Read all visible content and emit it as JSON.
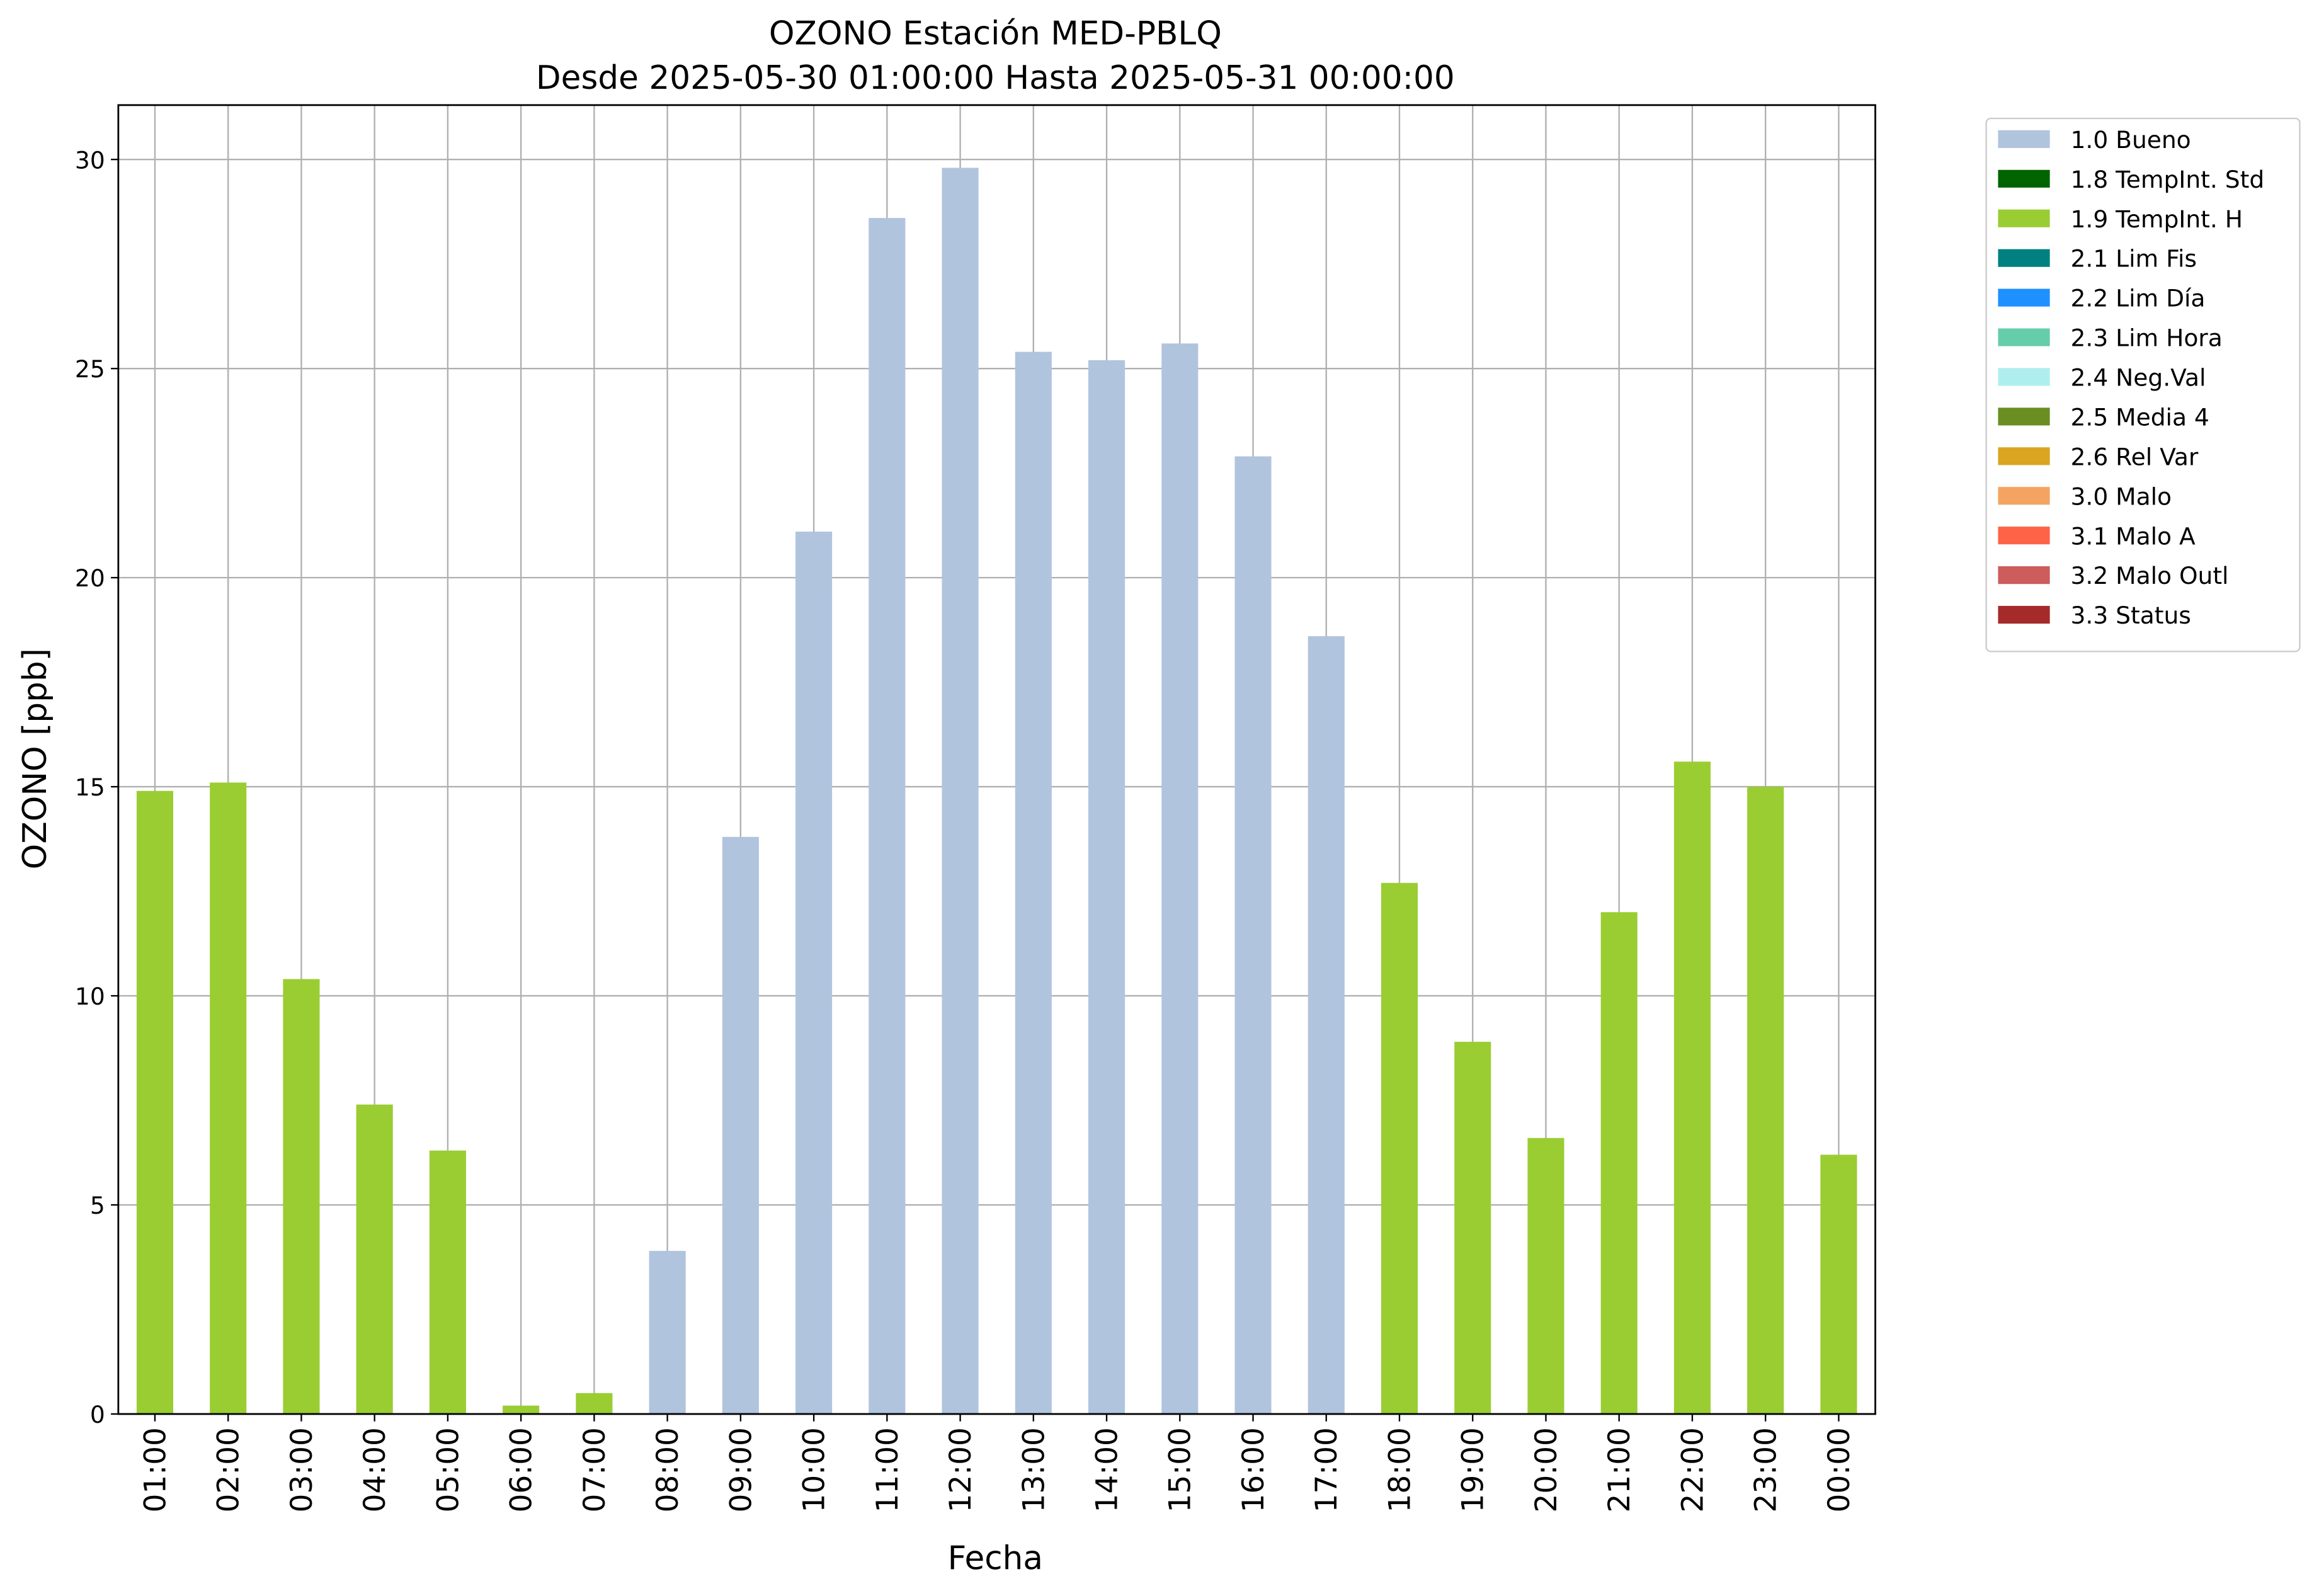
{
  "chart_data": {
    "type": "stacked_bar",
    "title": "OZONO Estación MED-PBLQ",
    "subtitle": "Desde 2025-05-30 01:00:00 Hasta 2025-05-31 00:00:00",
    "x_label": "Fecha",
    "y_label": "OZONO [ppb]",
    "categories": [
      "01:00",
      "02:00",
      "03:00",
      "04:00",
      "05:00",
      "06:00",
      "07:00",
      "08:00",
      "09:00",
      "10:00",
      "11:00",
      "12:00",
      "13:00",
      "14:00",
      "15:00",
      "16:00",
      "17:00",
      "18:00",
      "19:00",
      "20:00",
      "21:00",
      "22:00",
      "23:00",
      "00:00"
    ],
    "series": [
      {
        "name": "1.0 Bueno",
        "color": "#b0c4de",
        "values": [
          null,
          null,
          null,
          null,
          null,
          null,
          null,
          3.9,
          13.8,
          21.1,
          28.6,
          29.8,
          25.4,
          25.2,
          25.6,
          22.9,
          18.6,
          null,
          null,
          null,
          null,
          null,
          null,
          null
        ]
      },
      {
        "name": "1.8 TempInt. Std",
        "color": "#006400",
        "values": [
          null,
          null,
          null,
          null,
          null,
          null,
          null,
          null,
          null,
          null,
          null,
          null,
          null,
          null,
          null,
          null,
          null,
          null,
          null,
          null,
          null,
          null,
          null,
          null
        ]
      },
      {
        "name": "1.9 TempInt. H",
        "color": "#9acd32",
        "values": [
          14.9,
          15.1,
          10.4,
          7.4,
          6.3,
          0.2,
          0.5,
          null,
          null,
          null,
          null,
          null,
          null,
          null,
          null,
          null,
          null,
          12.7,
          8.9,
          6.6,
          12.0,
          15.6,
          15.0,
          6.2
        ]
      },
      {
        "name": "2.1 Lim Fis",
        "color": "#008080",
        "values": [
          null,
          null,
          null,
          null,
          null,
          null,
          null,
          null,
          null,
          null,
          null,
          null,
          null,
          null,
          null,
          null,
          null,
          null,
          null,
          null,
          null,
          null,
          null,
          null
        ]
      },
      {
        "name": "2.2 Lim Día",
        "color": "#1e90ff",
        "values": [
          null,
          null,
          null,
          null,
          null,
          null,
          null,
          null,
          null,
          null,
          null,
          null,
          null,
          null,
          null,
          null,
          null,
          null,
          null,
          null,
          null,
          null,
          null,
          null
        ]
      },
      {
        "name": "2.3 Lim Hora",
        "color": "#66cdaa",
        "values": [
          null,
          null,
          null,
          null,
          null,
          null,
          null,
          null,
          null,
          null,
          null,
          null,
          null,
          null,
          null,
          null,
          null,
          null,
          null,
          null,
          null,
          null,
          null,
          null
        ]
      },
      {
        "name": "2.4 Neg.Val",
        "color": "#afeeee",
        "values": [
          null,
          null,
          null,
          null,
          null,
          null,
          null,
          null,
          null,
          null,
          null,
          null,
          null,
          null,
          null,
          null,
          null,
          null,
          null,
          null,
          null,
          null,
          null,
          null
        ]
      },
      {
        "name": "2.5 Media 4",
        "color": "#6b8e23",
        "values": [
          null,
          null,
          null,
          null,
          null,
          null,
          null,
          null,
          null,
          null,
          null,
          null,
          null,
          null,
          null,
          null,
          null,
          null,
          null,
          null,
          null,
          null,
          null,
          null
        ]
      },
      {
        "name": "2.6 Rel Var",
        "color": "#daa520",
        "values": [
          null,
          null,
          null,
          null,
          null,
          null,
          null,
          null,
          null,
          null,
          null,
          null,
          null,
          null,
          null,
          null,
          null,
          null,
          null,
          null,
          null,
          null,
          null,
          null
        ]
      },
      {
        "name": "3.0 Malo",
        "color": "#f4a460",
        "values": [
          null,
          null,
          null,
          null,
          null,
          null,
          null,
          null,
          null,
          null,
          null,
          null,
          null,
          null,
          null,
          null,
          null,
          null,
          null,
          null,
          null,
          null,
          null,
          null
        ]
      },
      {
        "name": "3.1 Malo A",
        "color": "#ff6347",
        "values": [
          null,
          null,
          null,
          null,
          null,
          null,
          null,
          null,
          null,
          null,
          null,
          null,
          null,
          null,
          null,
          null,
          null,
          null,
          null,
          null,
          null,
          null,
          null,
          null
        ]
      },
      {
        "name": "3.2 Malo Outl",
        "color": "#cd5c5c",
        "values": [
          null,
          null,
          null,
          null,
          null,
          null,
          null,
          null,
          null,
          null,
          null,
          null,
          null,
          null,
          null,
          null,
          null,
          null,
          null,
          null,
          null,
          null,
          null,
          null
        ]
      },
      {
        "name": "3.3 Status",
        "color": "#a52a2a",
        "values": [
          null,
          null,
          null,
          null,
          null,
          null,
          null,
          null,
          null,
          null,
          null,
          null,
          null,
          null,
          null,
          null,
          null,
          null,
          null,
          null,
          null,
          null,
          null,
          null
        ]
      }
    ],
    "ylim": [
      0,
      31.3
    ],
    "yticks": [
      0,
      5,
      10,
      15,
      20,
      25,
      30
    ],
    "grid": true,
    "legend": "outside upper right"
  }
}
